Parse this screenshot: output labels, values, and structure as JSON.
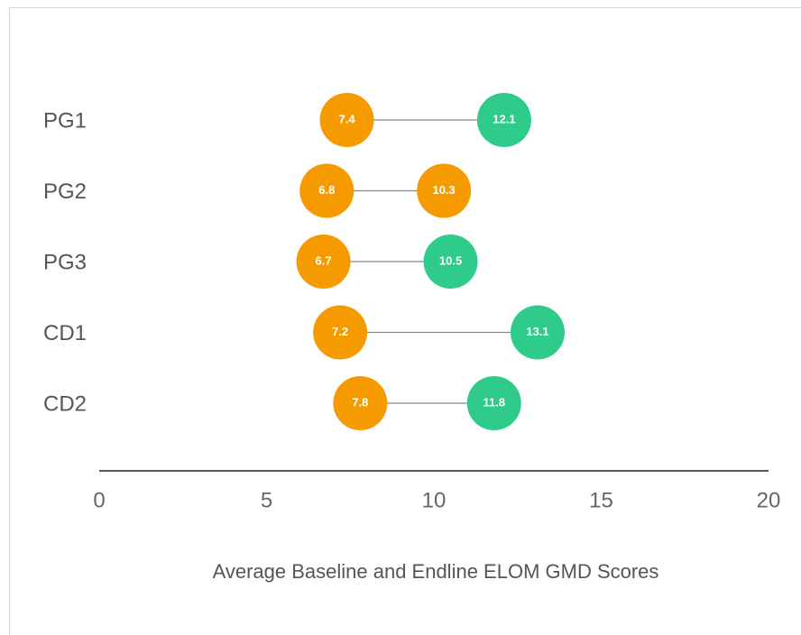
{
  "chart_data": {
    "type": "dumbbell",
    "x_label": "Average Baseline and Endline ELOM GMD Scores",
    "categories": [
      "PG1",
      "PG2",
      "PG3",
      "CD1",
      "CD2"
    ],
    "series": [
      {
        "color": "#f59b00",
        "colors": [
          "#f59b00",
          "#f59b00",
          "#f59b00",
          "#f59b00",
          "#f59b00"
        ],
        "values": [
          7.4,
          6.8,
          6.7,
          7.2,
          7.8
        ]
      },
      {
        "color": "#2ecb8b",
        "colors": [
          "#2ecb8b",
          "#f59b00",
          "#2ecb8b",
          "#2ecb8b",
          "#2ecb8b"
        ],
        "values": [
          12.1,
          10.3,
          10.5,
          13.1,
          11.8
        ]
      }
    ],
    "xlim": [
      0,
      20
    ],
    "xticks": [
      0,
      5,
      10,
      15,
      20
    ]
  }
}
